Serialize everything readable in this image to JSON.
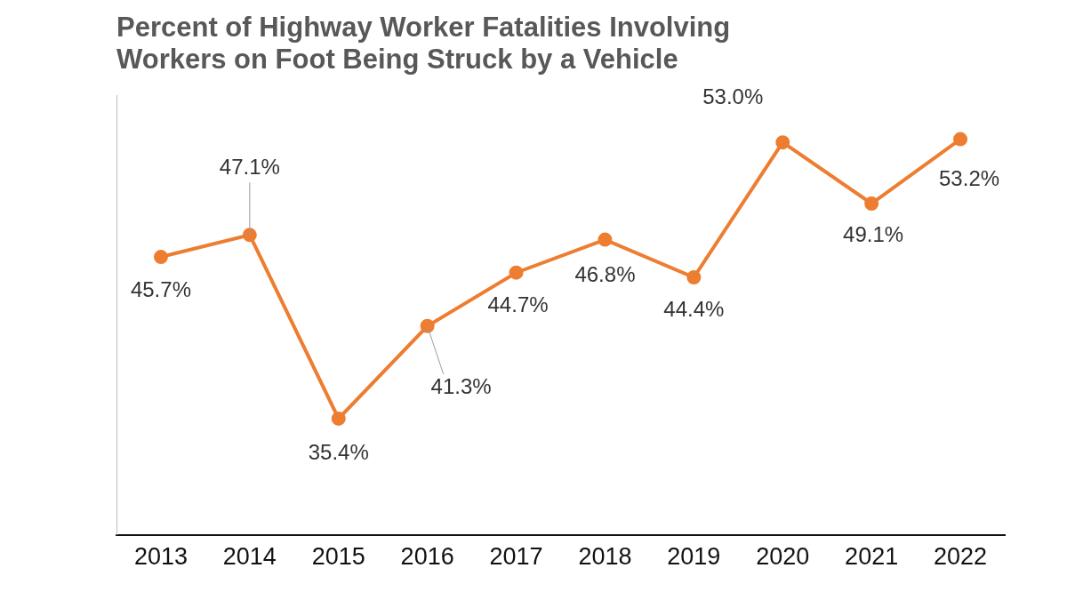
{
  "chart_data": {
    "type": "line",
    "title": [
      "Percent of Highway Worker Fatalities Involving",
      "Workers on Foot Being Struck by a Vehicle"
    ],
    "categories": [
      "2013",
      "2014",
      "2015",
      "2016",
      "2017",
      "2018",
      "2019",
      "2020",
      "2021",
      "2022"
    ],
    "values": [
      45.7,
      47.1,
      35.4,
      41.3,
      44.7,
      46.8,
      44.4,
      53.0,
      49.1,
      53.2
    ],
    "value_labels": [
      "45.7%",
      "47.1%",
      "35.4%",
      "41.3%",
      "44.7%",
      "46.8%",
      "44.4%",
      "53.0%",
      "49.1%",
      "53.2%"
    ],
    "color": "#ed7d31",
    "ylim": [
      28,
      56
    ],
    "grid": false,
    "data_labels": true,
    "tick_labels": "x",
    "marker": "circle",
    "line_style": "solid"
  }
}
